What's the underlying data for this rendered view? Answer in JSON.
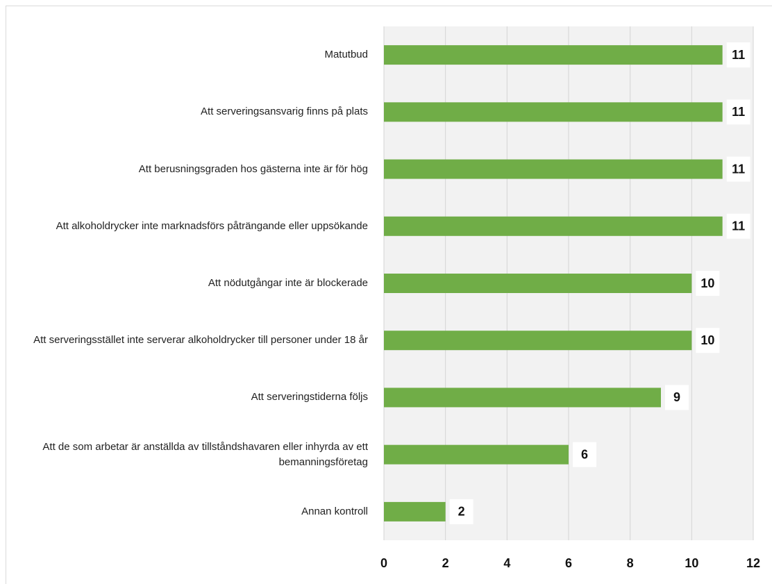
{
  "chart_data": {
    "type": "bar",
    "orientation": "horizontal",
    "categories": [
      "Matutbud",
      "Att serveringsansvarig finns på plats",
      "Att berusningsgraden hos gästerna inte är för hög",
      "Att alkoholdrycker inte marknadsförs påträngande eller uppsökande",
      "Att nödutgångar inte är blockerade",
      "Att serveringsstället inte serverar alkoholdrycker till personer under 18 år",
      "Att serveringstiderna följs",
      "Att de som arbetar är anställda av tillståndshavaren eller inhyrda av ett bemanningsföretag",
      "Annan kontroll"
    ],
    "values": [
      11,
      11,
      11,
      11,
      10,
      10,
      9,
      6,
      2
    ],
    "color": "#70ad47",
    "xlim": [
      0,
      12
    ],
    "xticks": [
      0,
      2,
      4,
      6,
      8,
      10,
      12
    ],
    "grid": true
  }
}
